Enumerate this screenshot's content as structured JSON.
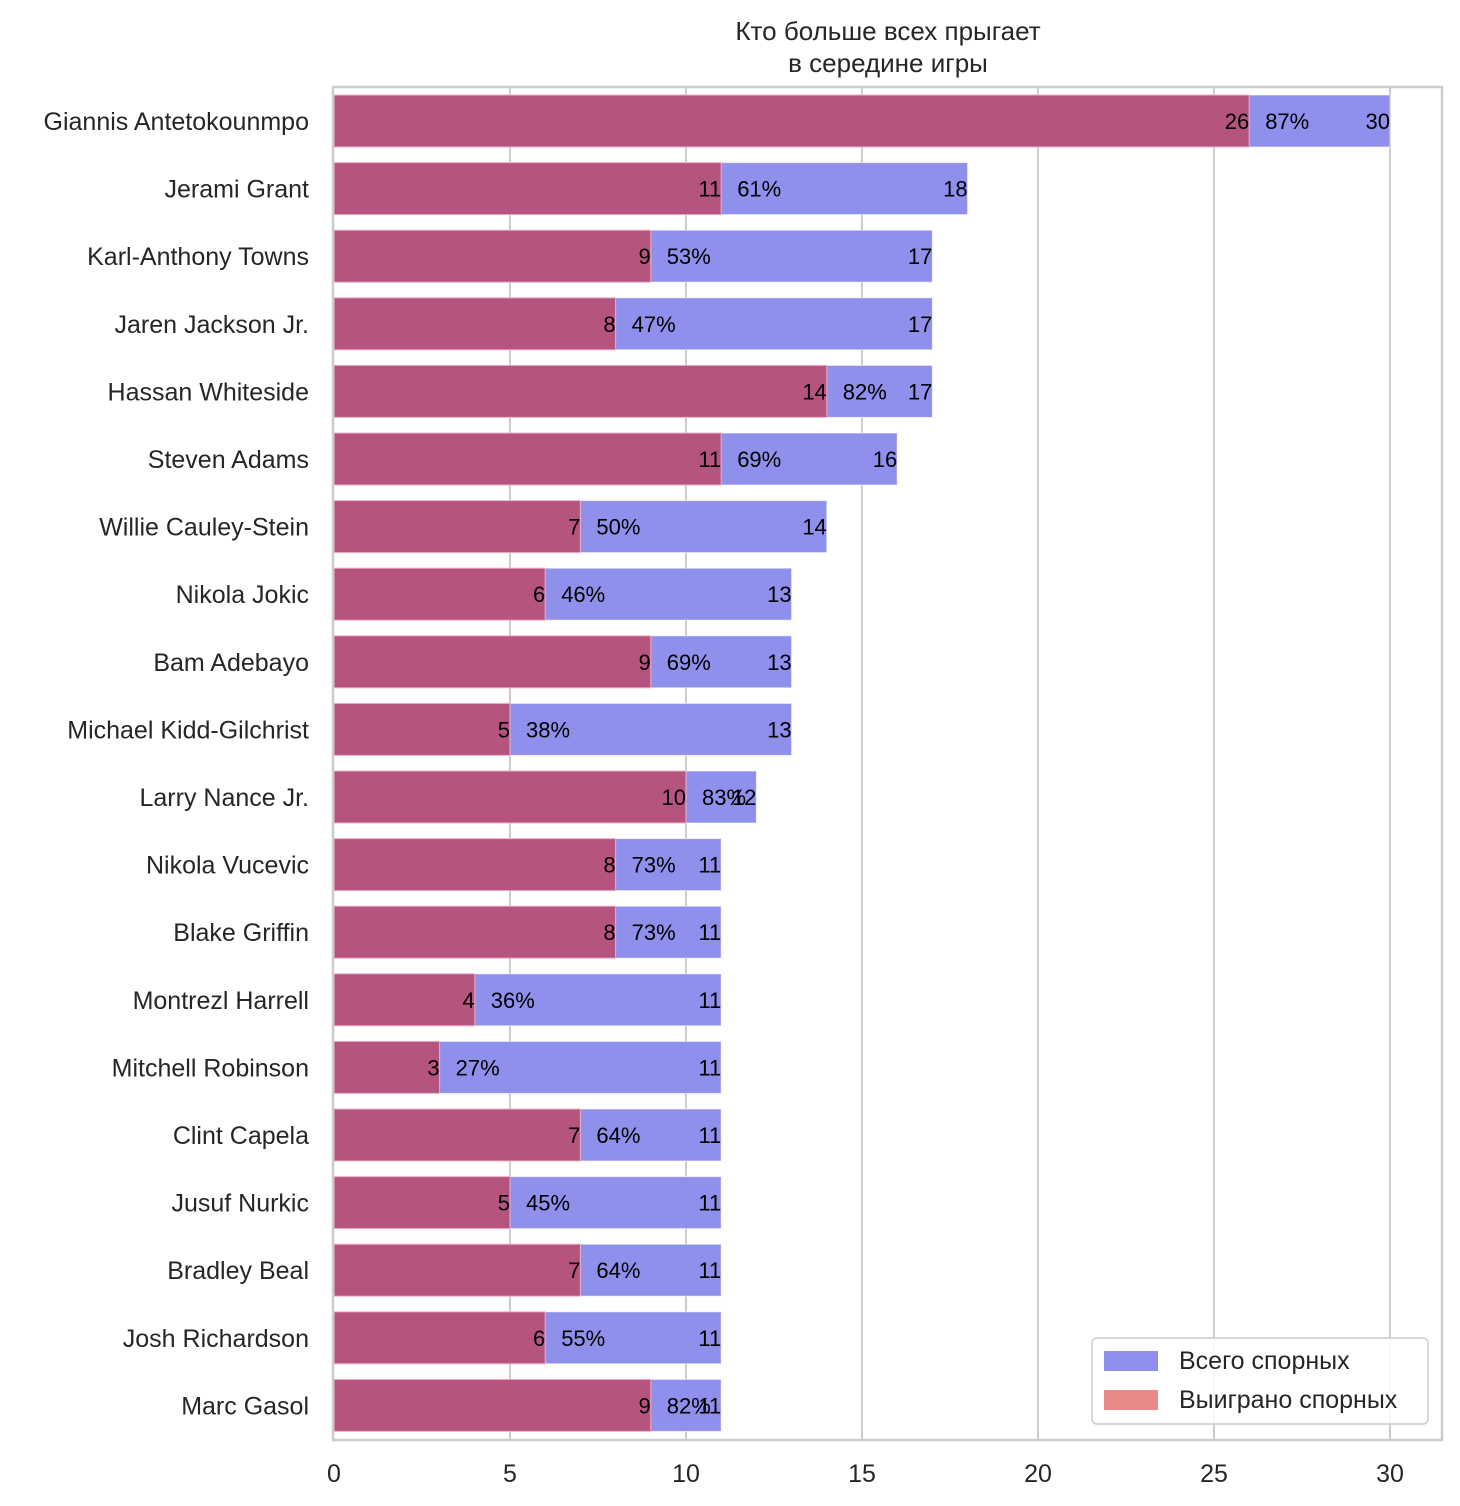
{
  "chart_data": {
    "type": "bar",
    "orientation": "horizontal",
    "title": "Кто больше всех прыгает\nв середине игры",
    "title_lines": [
      "Кто больше всех прыгает",
      "в середине игры"
    ],
    "xlabel": "",
    "ylabel": "",
    "xlim": [
      0,
      31.5
    ],
    "xticks": [
      0,
      5,
      10,
      15,
      20,
      25,
      30
    ],
    "grid": "vertical",
    "legend_position": "lower-right",
    "categories": [
      "Giannis Antetokounmpo",
      "Jerami Grant",
      "Karl-Anthony Towns",
      "Jaren Jackson Jr.",
      "Hassan Whiteside",
      "Steven Adams",
      "Willie Cauley-Stein",
      "Nikola Jokic",
      "Bam Adebayo",
      "Michael Kidd-Gilchrist",
      "Larry Nance Jr.",
      "Nikola Vucevic",
      "Blake Griffin",
      "Montrezl Harrell",
      "Mitchell Robinson",
      "Clint Capela",
      "Jusuf Nurkic",
      "Bradley Beal",
      "Josh Richardson",
      "Marc Gasol"
    ],
    "series": [
      {
        "name": "Всего спорных",
        "color": "#8f8fec",
        "values": [
          30,
          18,
          17,
          17,
          17,
          16,
          14,
          13,
          13,
          13,
          12,
          11,
          11,
          11,
          11,
          11,
          11,
          11,
          11,
          11
        ]
      },
      {
        "name": "Выиграно спорных",
        "color": "#e98a8a",
        "overlay_color": "#b5557f",
        "values": [
          26,
          11,
          9,
          8,
          14,
          11,
          7,
          6,
          9,
          5,
          10,
          8,
          8,
          4,
          3,
          7,
          5,
          7,
          6,
          9
        ]
      }
    ],
    "percent_labels": [
      "87%",
      "61%",
      "53%",
      "47%",
      "82%",
      "69%",
      "50%",
      "46%",
      "69%",
      "38%",
      "83%",
      "73%",
      "73%",
      "36%",
      "27%",
      "64%",
      "45%",
      "64%",
      "55%",
      "82%"
    ]
  }
}
